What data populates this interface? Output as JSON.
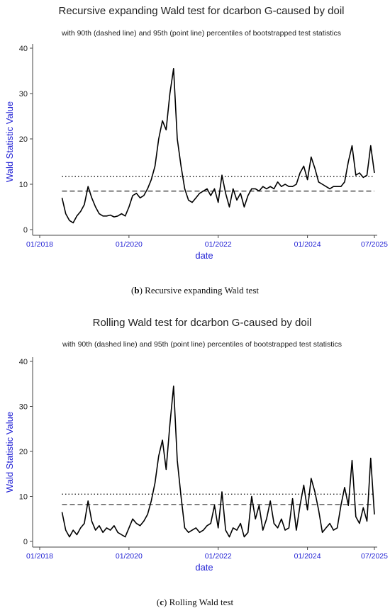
{
  "figure_b": {
    "caption_letter": "b",
    "caption_text": "Recursive expanding Wald test"
  },
  "figure_c": {
    "caption_letter": "c",
    "caption_text": "Rolling Wald test"
  },
  "chart_data": [
    {
      "type": "line",
      "title": "Recursive expanding Wald test for dcarbon G-caused by doil",
      "subtitle": "with 90th (dashed line) and 95th (point line) percentiles of bootstrapped test statistics",
      "xlabel": "date",
      "ylabel": "Wald Statistic Value",
      "x_ticks": [
        "01/2018",
        "01/2020",
        "01/2022",
        "01/2024",
        "07/2025"
      ],
      "y_ticks": [
        0,
        10,
        20,
        30,
        40
      ],
      "xlim": [
        "2018-01",
        "2025-07"
      ],
      "ylim": [
        0,
        40
      ],
      "reference_lines": [
        {
          "style": "dashed",
          "value": 8.5
        },
        {
          "style": "dotted",
          "value": 11.7
        }
      ],
      "series": [
        {
          "x": [
            "2018-07",
            "2018-08",
            "2018-09",
            "2018-10",
            "2018-11",
            "2018-12",
            "2019-01",
            "2019-02",
            "2019-03",
            "2019-04",
            "2019-05",
            "2019-06",
            "2019-07",
            "2019-08",
            "2019-09",
            "2019-10",
            "2019-11",
            "2019-12",
            "2020-01",
            "2020-02",
            "2020-03",
            "2020-04",
            "2020-05",
            "2020-06",
            "2020-07",
            "2020-08",
            "2020-09",
            "2020-10",
            "2020-11",
            "2020-12",
            "2021-01",
            "2021-02",
            "2021-03",
            "2021-04",
            "2021-05",
            "2021-06",
            "2021-07",
            "2021-08",
            "2021-09",
            "2021-10",
            "2021-11",
            "2021-12",
            "2022-01",
            "2022-02",
            "2022-03",
            "2022-04",
            "2022-05",
            "2022-06",
            "2022-07",
            "2022-08",
            "2022-09",
            "2022-10",
            "2022-11",
            "2022-12",
            "2023-01",
            "2023-02",
            "2023-03",
            "2023-04",
            "2023-05",
            "2023-06",
            "2023-07",
            "2023-08",
            "2023-09",
            "2023-10",
            "2023-11",
            "2023-12",
            "2024-01",
            "2024-02",
            "2024-03",
            "2024-04",
            "2024-05",
            "2024-06",
            "2024-07",
            "2024-08",
            "2024-09",
            "2024-10",
            "2024-11",
            "2024-12",
            "2025-01",
            "2025-02",
            "2025-03",
            "2025-04",
            "2025-05",
            "2025-06",
            "2025-07"
          ],
          "values": [
            7.0,
            3.5,
            2.0,
            1.5,
            3.0,
            4.0,
            5.5,
            9.5,
            7.0,
            5.0,
            3.5,
            3.0,
            3.0,
            3.2,
            2.8,
            3.0,
            3.5,
            3.0,
            5.0,
            7.5,
            8.0,
            7.0,
            7.5,
            9.0,
            11.0,
            14.0,
            20.0,
            24.0,
            22.0,
            30.0,
            35.5,
            20.0,
            14.0,
            9.0,
            6.5,
            6.0,
            7.0,
            8.0,
            8.5,
            9.0,
            7.5,
            9.0,
            6.0,
            12.0,
            8.0,
            5.0,
            9.0,
            6.5,
            8.0,
            5.0,
            7.5,
            9.0,
            9.0,
            8.5,
            9.5,
            9.0,
            9.5,
            9.0,
            10.5,
            9.5,
            10.0,
            9.5,
            9.5,
            10.0,
            12.5,
            14.0,
            11.0,
            16.0,
            13.5,
            10.5,
            10.0,
            9.5,
            9.0,
            9.5,
            9.5,
            9.5,
            10.5,
            15.0,
            18.5,
            12.0,
            12.5,
            11.5,
            12.0,
            18.5,
            12.5
          ]
        }
      ]
    },
    {
      "type": "line",
      "title": "Rolling Wald test for dcarbon G-caused by doil",
      "subtitle": "with 90th (dashed line) and 95th (point line) percentiles of bootstrapped test statistics",
      "xlabel": "date",
      "ylabel": "Wald Statistic Value",
      "x_ticks": [
        "01/2018",
        "01/2020",
        "01/2022",
        "01/2024",
        "07/2025"
      ],
      "y_ticks": [
        0,
        10,
        20,
        30,
        40
      ],
      "xlim": [
        "2018-01",
        "2025-07"
      ],
      "ylim": [
        0,
        40
      ],
      "reference_lines": [
        {
          "style": "dashed",
          "value": 8.2
        },
        {
          "style": "dotted",
          "value": 10.5
        }
      ],
      "series": [
        {
          "x": [
            "2018-07",
            "2018-08",
            "2018-09",
            "2018-10",
            "2018-11",
            "2018-12",
            "2019-01",
            "2019-02",
            "2019-03",
            "2019-04",
            "2019-05",
            "2019-06",
            "2019-07",
            "2019-08",
            "2019-09",
            "2019-10",
            "2019-11",
            "2019-12",
            "2020-01",
            "2020-02",
            "2020-03",
            "2020-04",
            "2020-05",
            "2020-06",
            "2020-07",
            "2020-08",
            "2020-09",
            "2020-10",
            "2020-11",
            "2020-12",
            "2021-01",
            "2021-02",
            "2021-03",
            "2021-04",
            "2021-05",
            "2021-06",
            "2021-07",
            "2021-08",
            "2021-09",
            "2021-10",
            "2021-11",
            "2021-12",
            "2022-01",
            "2022-02",
            "2022-03",
            "2022-04",
            "2022-05",
            "2022-06",
            "2022-07",
            "2022-08",
            "2022-09",
            "2022-10",
            "2022-11",
            "2022-12",
            "2023-01",
            "2023-02",
            "2023-03",
            "2023-04",
            "2023-05",
            "2023-06",
            "2023-07",
            "2023-08",
            "2023-09",
            "2023-10",
            "2023-11",
            "2023-12",
            "2024-01",
            "2024-02",
            "2024-03",
            "2024-04",
            "2024-05",
            "2024-06",
            "2024-07",
            "2024-08",
            "2024-09",
            "2024-10",
            "2024-11",
            "2024-12",
            "2025-01",
            "2025-02",
            "2025-03",
            "2025-04",
            "2025-05",
            "2025-06",
            "2025-07"
          ],
          "values": [
            6.5,
            2.5,
            1.0,
            2.5,
            1.5,
            3.0,
            4.0,
            9.0,
            4.5,
            2.5,
            3.5,
            2.0,
            3.0,
            2.5,
            3.5,
            2.0,
            1.5,
            1.0,
            3.0,
            5.0,
            4.0,
            3.5,
            4.5,
            6.0,
            9.0,
            13.0,
            19.0,
            22.5,
            16.0,
            26.0,
            34.5,
            18.0,
            10.0,
            3.0,
            2.0,
            2.5,
            3.0,
            2.0,
            2.5,
            3.5,
            4.0,
            8.0,
            3.0,
            11.0,
            2.5,
            1.0,
            3.0,
            2.5,
            4.0,
            1.0,
            2.0,
            10.0,
            5.0,
            8.0,
            2.5,
            5.0,
            9.0,
            4.0,
            3.0,
            5.0,
            2.5,
            3.0,
            9.5,
            2.5,
            8.0,
            12.5,
            7.0,
            14.0,
            11.0,
            7.0,
            2.0,
            3.0,
            4.0,
            2.5,
            3.0,
            8.0,
            12.0,
            8.0,
            18.0,
            5.5,
            4.0,
            7.5,
            4.5,
            18.5,
            6.0
          ]
        }
      ]
    }
  ]
}
